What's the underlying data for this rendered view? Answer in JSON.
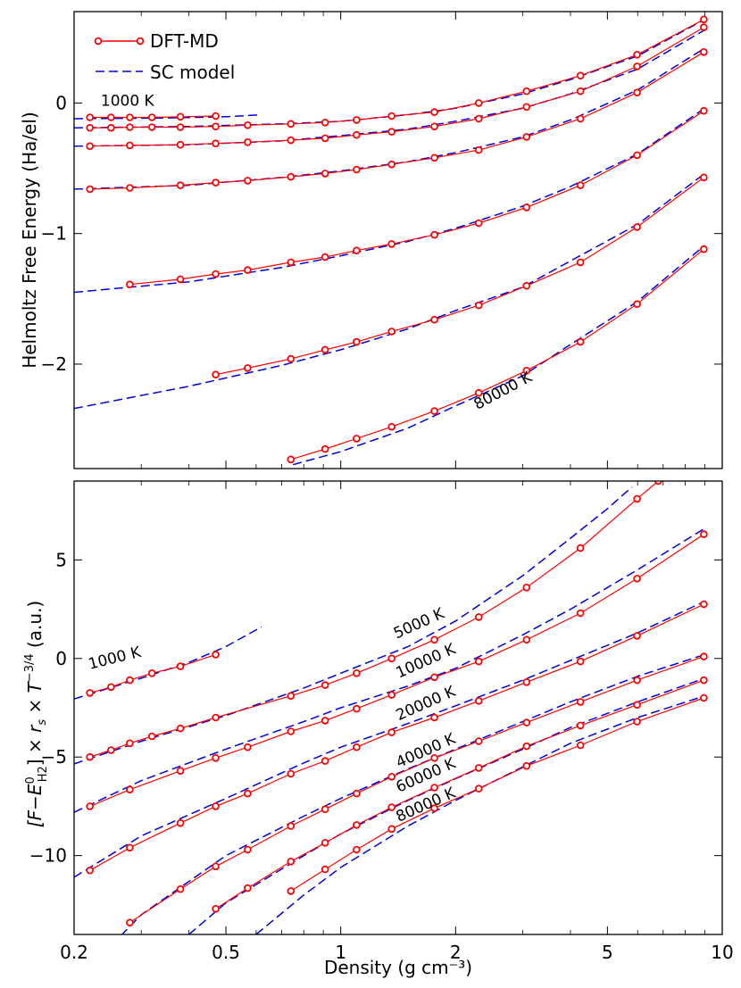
{
  "chart_data": [
    {
      "type": "line",
      "panel": "top",
      "title": "",
      "xlabel": "",
      "ylabel": "Helmoltz Free Energy (Ha/el)",
      "xscale": "log",
      "xlim": [
        0.2,
        10
      ],
      "ylim": [
        -2.8,
        0.7
      ],
      "yticks": [
        0,
        -1,
        -2
      ],
      "ytick_labels": [
        "0",
        "−1",
        "−2"
      ],
      "legend": {
        "placement": "top-left",
        "entries": [
          {
            "label": "DFT-MD",
            "style": "solid-line-circles",
            "color": "#ff0000"
          },
          {
            "label": "SC model",
            "style": "dashed-line",
            "color": "#0000dd"
          }
        ]
      },
      "annotations": [
        {
          "text": "1000 K",
          "x": 0.235,
          "y": -0.02,
          "angle": 0
        },
        {
          "text": "80000 K",
          "x": 2.28,
          "y": -2.35,
          "angle": -28
        }
      ],
      "series": [
        {
          "name": "1000 K",
          "dft_x": [
            0.22,
            0.25,
            0.28,
            0.32,
            0.38,
            0.47
          ],
          "dft_y": [
            -0.11,
            -0.11,
            -0.11,
            -0.11,
            -0.105,
            -0.1
          ],
          "sc_x": [
            0.2,
            0.35,
            0.5,
            0.62
          ],
          "sc_y": [
            -0.12,
            -0.115,
            -0.105,
            -0.09
          ]
        },
        {
          "name": "5000 K",
          "dft_x": [
            0.22,
            0.25,
            0.28,
            0.32,
            0.38,
            0.47,
            0.57,
            0.74,
            0.91,
            1.1,
            1.36,
            1.76,
            2.3,
            3.07,
            4.25,
            5.98,
            8.95
          ],
          "dft_y": [
            -0.19,
            -0.19,
            -0.185,
            -0.185,
            -0.185,
            -0.18,
            -0.17,
            -0.16,
            -0.15,
            -0.13,
            -0.1,
            -0.07,
            0.0,
            0.09,
            0.21,
            0.37,
            0.64
          ],
          "sc_x": [
            0.2,
            0.4,
            0.7,
            1.0,
            1.5,
            2.0,
            3.0,
            4.0,
            6.0,
            9.0
          ],
          "sc_y": [
            -0.19,
            -0.18,
            -0.16,
            -0.14,
            -0.09,
            -0.04,
            0.07,
            0.18,
            0.36,
            0.64
          ]
        },
        {
          "name": "10000 K",
          "dft_x": [
            0.22,
            0.28,
            0.38,
            0.47,
            0.57,
            0.74,
            0.91,
            1.1,
            1.36,
            1.76,
            2.3,
            3.07,
            4.25,
            5.98,
            8.95
          ],
          "dft_y": [
            -0.33,
            -0.325,
            -0.32,
            -0.31,
            -0.3,
            -0.285,
            -0.27,
            -0.245,
            -0.22,
            -0.18,
            -0.12,
            -0.03,
            0.09,
            0.28,
            0.58
          ],
          "sc_x": [
            0.2,
            0.4,
            0.7,
            1.0,
            1.5,
            2.0,
            3.0,
            4.0,
            6.0,
            9.0
          ],
          "sc_y": [
            -0.33,
            -0.32,
            -0.29,
            -0.25,
            -0.2,
            -0.14,
            -0.04,
            0.07,
            0.26,
            0.56
          ]
        },
        {
          "name": "20000 K",
          "dft_x": [
            0.22,
            0.28,
            0.38,
            0.47,
            0.57,
            0.74,
            0.91,
            1.1,
            1.36,
            1.76,
            2.3,
            3.07,
            4.25,
            5.98,
            8.95
          ],
          "dft_y": [
            -0.66,
            -0.65,
            -0.63,
            -0.61,
            -0.595,
            -0.565,
            -0.54,
            -0.51,
            -0.47,
            -0.42,
            -0.36,
            -0.26,
            -0.12,
            0.08,
            0.39
          ],
          "sc_x": [
            0.2,
            0.4,
            0.7,
            1.0,
            1.5,
            2.0,
            3.0,
            4.0,
            6.0,
            9.0
          ],
          "sc_y": [
            -0.66,
            -0.63,
            -0.57,
            -0.52,
            -0.45,
            -0.38,
            -0.26,
            -0.13,
            0.1,
            0.42
          ]
        },
        {
          "name": "40000 K",
          "dft_x": [
            0.28,
            0.38,
            0.47,
            0.57,
            0.74,
            0.91,
            1.1,
            1.36,
            1.76,
            2.3,
            3.07,
            4.25,
            5.98,
            8.95
          ],
          "dft_y": [
            -1.39,
            -1.35,
            -1.31,
            -1.28,
            -1.22,
            -1.18,
            -1.13,
            -1.08,
            -1.01,
            -0.92,
            -0.8,
            -0.63,
            -0.4,
            -0.06
          ],
          "sc_x": [
            0.2,
            0.4,
            0.7,
            1.0,
            1.5,
            2.0,
            3.0,
            4.0,
            6.0,
            9.0
          ],
          "sc_y": [
            -1.45,
            -1.37,
            -1.26,
            -1.17,
            -1.06,
            -0.96,
            -0.79,
            -0.64,
            -0.39,
            -0.04
          ]
        },
        {
          "name": "60000 K",
          "dft_x": [
            0.47,
            0.57,
            0.74,
            0.91,
            1.1,
            1.36,
            1.76,
            2.3,
            3.07,
            4.25,
            5.98,
            8.95
          ],
          "dft_y": [
            -2.08,
            -2.03,
            -1.96,
            -1.89,
            -1.83,
            -1.75,
            -1.66,
            -1.55,
            -1.4,
            -1.22,
            -0.95,
            -0.57
          ],
          "sc_x": [
            0.2,
            0.4,
            0.7,
            1.0,
            1.5,
            2.0,
            3.0,
            4.0,
            6.0,
            9.0
          ],
          "sc_y": [
            -2.34,
            -2.17,
            -2.01,
            -1.89,
            -1.73,
            -1.59,
            -1.41,
            -1.21,
            -0.93,
            -0.54
          ]
        },
        {
          "name": "80000 K",
          "dft_x": [
            0.74,
            0.91,
            1.1,
            1.36,
            1.76,
            2.3,
            3.07,
            4.25,
            5.98,
            8.95
          ],
          "dft_y": [
            -2.73,
            -2.65,
            -2.57,
            -2.48,
            -2.36,
            -2.22,
            -2.05,
            -1.83,
            -1.54,
            -1.12
          ],
          "sc_x": [
            0.75,
            1.0,
            1.5,
            2.0,
            3.0,
            4.0,
            6.0,
            9.0
          ],
          "sc_y": [
            -2.77,
            -2.67,
            -2.49,
            -2.32,
            -2.09,
            -1.85,
            -1.52,
            -1.09
          ]
        }
      ]
    },
    {
      "type": "line",
      "panel": "bottom",
      "title": "",
      "xlabel": "Density (g cm⁻³)",
      "ylabel": "[F−E⁰_H2] × r_s × T^−3/4  (a.u.)",
      "ylabel_parts": {
        "bracket": "[F−E",
        "sup": "0",
        "sub": "H2",
        "after": "] × ",
        "rs": "r",
        "rs_sub": "s",
        "times": " × ",
        "T": "T",
        "T_exp": "−3/4",
        "units": " (a.u.)"
      },
      "xscale": "log",
      "xlim": [
        0.2,
        10
      ],
      "ylim": [
        -14,
        9
      ],
      "xticks": [
        0.2,
        0.5,
        1,
        2,
        5,
        10
      ],
      "xtick_labels": [
        "0.2",
        "0.5",
        "1",
        "2",
        "5",
        "10"
      ],
      "yticks": [
        5,
        0,
        -5,
        -10
      ],
      "ytick_labels": [
        "5",
        "0",
        "−5",
        "−10"
      ],
      "annotations": [
        {
          "text": "1000 K",
          "x": 0.22,
          "y": -0.55,
          "angle": -14
        },
        {
          "text": "5000 K",
          "x": 1.4,
          "y": 1.0,
          "angle": -24
        },
        {
          "text": "10000 K",
          "x": 1.42,
          "y": -1.0,
          "angle": -24
        },
        {
          "text": "20000 K",
          "x": 1.42,
          "y": -3.15,
          "angle": -24
        },
        {
          "text": "40000 K",
          "x": 1.42,
          "y": -5.55,
          "angle": -24
        },
        {
          "text": "60000 K",
          "x": 1.42,
          "y": -6.8,
          "angle": -24
        },
        {
          "text": "80000 K",
          "x": 1.42,
          "y": -8.3,
          "angle": -24
        }
      ],
      "series": [
        {
          "name": "1000 K",
          "dft_x": [
            0.22,
            0.25,
            0.28,
            0.32,
            0.38,
            0.47
          ],
          "dft_y": [
            -1.75,
            -1.45,
            -1.1,
            -0.75,
            -0.4,
            0.2
          ],
          "sc_x": [
            0.2,
            0.3,
            0.4,
            0.5,
            0.62
          ],
          "sc_y": [
            -2.05,
            -1.0,
            -0.2,
            0.6,
            1.6
          ]
        },
        {
          "name": "5000 K",
          "dft_x": [
            0.22,
            0.25,
            0.28,
            0.32,
            0.38,
            0.47,
            0.74,
            0.91,
            1.1,
            1.36,
            1.76,
            2.3,
            3.07,
            4.25,
            5.98,
            6.8
          ],
          "dft_y": [
            -5.0,
            -4.65,
            -4.3,
            -3.95,
            -3.55,
            -3.0,
            -1.9,
            -1.35,
            -0.75,
            0.0,
            0.95,
            2.1,
            3.6,
            5.6,
            8.1,
            9.0
          ],
          "sc_x": [
            0.2,
            0.3,
            0.5,
            0.8,
            1.0,
            1.5,
            2.0,
            3.0,
            4.0,
            5.0,
            5.8
          ],
          "sc_y": [
            -5.35,
            -4.2,
            -2.9,
            -1.5,
            -0.75,
            0.6,
            1.9,
            4.2,
            6.1,
            7.6,
            8.7
          ]
        },
        {
          "name": "10000 K",
          "dft_x": [
            0.22,
            0.28,
            0.38,
            0.47,
            0.57,
            0.74,
            0.91,
            1.1,
            1.36,
            1.76,
            2.3,
            3.07,
            4.25,
            5.98,
            8.95
          ],
          "dft_y": [
            -7.5,
            -6.65,
            -5.7,
            -5.05,
            -4.5,
            -3.7,
            -3.15,
            -2.55,
            -1.85,
            -0.95,
            -0.15,
            0.95,
            2.3,
            4.05,
            6.3
          ],
          "sc_x": [
            0.2,
            0.3,
            0.5,
            0.8,
            1.0,
            1.5,
            2.0,
            3.0,
            4.0,
            6.0,
            9.0
          ],
          "sc_y": [
            -7.8,
            -6.2,
            -4.6,
            -3.2,
            -2.5,
            -1.4,
            -0.5,
            1.2,
            2.5,
            4.5,
            6.6
          ]
        },
        {
          "name": "20000 K",
          "dft_x": [
            0.22,
            0.28,
            0.38,
            0.47,
            0.57,
            0.74,
            0.91,
            1.1,
            1.36,
            1.76,
            2.3,
            3.07,
            4.25,
            5.98,
            8.95
          ],
          "dft_y": [
            -10.75,
            -9.6,
            -8.35,
            -7.5,
            -6.85,
            -5.85,
            -5.2,
            -4.5,
            -3.75,
            -3.0,
            -2.15,
            -1.2,
            -0.15,
            1.15,
            2.75
          ],
          "sc_x": [
            0.2,
            0.3,
            0.5,
            0.8,
            1.0,
            1.5,
            2.0,
            3.0,
            4.0,
            6.0,
            9.0
          ],
          "sc_y": [
            -11.1,
            -9.0,
            -7.1,
            -5.3,
            -4.5,
            -3.3,
            -2.4,
            -1.1,
            -0.1,
            1.3,
            2.9
          ]
        },
        {
          "name": "40000 K",
          "dft_x": [
            0.28,
            0.38,
            0.47,
            0.57,
            0.74,
            0.91,
            1.1,
            1.36,
            1.76,
            2.3,
            3.07,
            4.25,
            5.98,
            8.95
          ],
          "dft_y": [
            -13.4,
            -11.7,
            -10.55,
            -9.7,
            -8.5,
            -7.65,
            -6.85,
            -6.0,
            -5.05,
            -4.2,
            -3.25,
            -2.2,
            -1.1,
            0.1
          ],
          "sc_x": [
            0.2,
            0.3,
            0.5,
            0.8,
            1.0,
            1.5,
            2.0,
            3.0,
            4.0,
            6.0,
            9.0
          ],
          "sc_y": [
            -16.5,
            -13.0,
            -10.0,
            -8.0,
            -7.1,
            -5.6,
            -4.6,
            -3.2,
            -2.2,
            -0.9,
            0.2
          ]
        },
        {
          "name": "60000 K",
          "dft_x": [
            0.47,
            0.57,
            0.74,
            0.91,
            1.1,
            1.36,
            1.76,
            2.3,
            3.07,
            4.25,
            5.98,
            8.95
          ],
          "dft_y": [
            -12.7,
            -11.65,
            -10.3,
            -9.35,
            -8.45,
            -7.55,
            -6.55,
            -5.55,
            -4.45,
            -3.4,
            -2.35,
            -1.1
          ],
          "sc_x": [
            0.4,
            0.5,
            0.8,
            1.0,
            1.5,
            2.0,
            3.0,
            4.0,
            6.0,
            9.0
          ],
          "sc_y": [
            -14.0,
            -12.4,
            -10.0,
            -8.9,
            -7.2,
            -6.1,
            -4.6,
            -3.5,
            -2.2,
            -1.0
          ]
        },
        {
          "name": "80000 K",
          "dft_x": [
            0.74,
            0.91,
            1.1,
            1.36,
            1.76,
            2.3,
            3.07,
            4.25,
            5.98,
            8.95
          ],
          "dft_y": [
            -11.8,
            -10.7,
            -9.7,
            -8.65,
            -7.6,
            -6.6,
            -5.45,
            -4.4,
            -3.2,
            -2.0
          ],
          "sc_x": [
            0.6,
            0.8,
            1.0,
            1.5,
            2.0,
            3.0,
            4.0,
            6.0,
            9.0
          ],
          "sc_y": [
            -14.0,
            -12.0,
            -10.6,
            -8.5,
            -7.2,
            -5.5,
            -4.3,
            -3.0,
            -1.9
          ]
        }
      ]
    }
  ]
}
